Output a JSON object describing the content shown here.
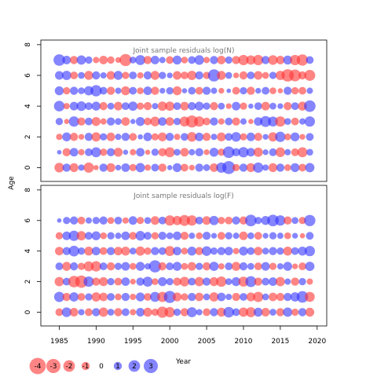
{
  "chart_data": {
    "type": "scatter",
    "ylabel": "Age",
    "xlabel": "Year",
    "x_ticks": [
      1985,
      1990,
      1995,
      2000,
      2005,
      2010,
      2015,
      2020
    ],
    "y_ticks": [
      0,
      2,
      4,
      6,
      8
    ],
    "xlim": [
      1982.5,
      2021.3
    ],
    "ylim": [
      -0.9,
      8.3
    ],
    "years": [
      1985,
      1986,
      1987,
      1988,
      1989,
      1990,
      1991,
      1992,
      1993,
      1994,
      1995,
      1996,
      1997,
      1998,
      1999,
      2000,
      2001,
      2002,
      2003,
      2004,
      2005,
      2006,
      2007,
      2008,
      2009,
      2010,
      2011,
      2012,
      2013,
      2014,
      2015,
      2016,
      2017,
      2018,
      2019
    ],
    "ages": [
      0,
      1,
      2,
      3,
      4,
      5,
      6,
      7
    ],
    "colors": {
      "positive": "#3333ff",
      "negative": "#ff3333"
    },
    "panels": [
      {
        "title": "Joint sample residuals log(N)",
        "residuals": [
          [
            -1.4,
            1.0,
            -1.2,
            0.6,
            -1.6,
            -0.4,
            1.0,
            -1.2,
            0.5,
            1.1,
            -0.8,
            1.3,
            -0.6,
            0.9,
            -1.0,
            0.4,
            1.2,
            -0.9,
            -0.5,
            1.0,
            0.7,
            -1.1,
            1.6,
            2.5,
            -0.8,
            1.0,
            -1.2,
            1.6,
            0.6,
            -1.2,
            1.0,
            -0.7,
            1.2,
            -0.9,
            1.3
          ],
          [
            0.3,
            -1.0,
            1.1,
            -0.6,
            0.9,
            1.5,
            -0.8,
            1.0,
            -1.2,
            0.4,
            -0.6,
            1.1,
            -0.4,
            0.8,
            -1.0,
            -1.5,
            0.7,
            -1.1,
            0.6,
            1.0,
            -0.5,
            1.2,
            -0.8,
            2.0,
            1.0,
            1.6,
            1.1,
            -1.3,
            0.5,
            0.9,
            -1.4,
            0.6,
            -0.9,
            -1.5,
            0.7
          ],
          [
            -0.6,
            1.2,
            -1.0,
            -0.5,
            1.0,
            -1.3,
            0.8,
            -1.1,
            0.6,
            1.0,
            -0.9,
            0.4,
            1.1,
            -0.8,
            -1.2,
            1.0,
            -0.6,
            0.9,
            -1.4,
            1.1,
            -1.0,
            0.6,
            -1.2,
            0.9,
            1.4,
            -0.8,
            1.1,
            -1.0,
            0.5,
            -1.3,
            1.6,
            -0.7,
            1.2,
            -0.5,
            0.9
          ],
          [
            0.8,
            -0.4,
            1.6,
            -1.0,
            0.9,
            -1.2,
            -0.6,
            1.0,
            0.7,
            -1.1,
            0.4,
            1.2,
            -0.9,
            -1.4,
            1.1,
            -1.1,
            0.8,
            -1.5,
            -2.2,
            -1.6,
            -0.9,
            1.0,
            -0.6,
            0.9,
            -1.0,
            0.6,
            -0.4,
            1.1,
            1.8,
            1.5,
            -1.6,
            0.7,
            -0.9,
            0.6,
            1.6
          ],
          [
            1.7,
            -0.6,
            1.1,
            1.4,
            0.9,
            1.2,
            -1.0,
            0.7,
            -1.1,
            0.9,
            1.3,
            -0.8,
            -1.0,
            0.6,
            -1.3,
            -1.3,
            0.9,
            -1.1,
            1.0,
            1.2,
            0.8,
            -1.0,
            0.7,
            -0.5,
            1.1,
            -0.8,
            0.4,
            0.9,
            -1.1,
            0.7,
            0.5,
            -1.0,
            0.9,
            -1.2,
            2.0
          ],
          [
            1.2,
            -0.8,
            1.0,
            0.7,
            1.3,
            1.9,
            0.9,
            -1.0,
            0.6,
            -1.2,
            0.9,
            -0.7,
            1.1,
            -1.0,
            0.5,
            0.8,
            -1.2,
            0.4,
            0.9,
            -0.9,
            1.0,
            0.6,
            -0.5,
            0.3,
            -0.9,
            0.8,
            -1.0,
            0.5,
            0.9,
            -0.7,
            -0.4,
            1.0,
            -0.8,
            -0.9,
            0.6
          ],
          [
            1.1,
            1.3,
            -0.9,
            0.7,
            -1.2,
            1.0,
            0.6,
            -1.1,
            1.2,
            -0.8,
            0.9,
            -0.6,
            1.0,
            -1.2,
            0.8,
            0.5,
            -1.1,
            -0.9,
            -1.3,
            1.0,
            -0.8,
            2.2,
            -1.2,
            0.7,
            -0.5,
            -1.0,
            0.9,
            -1.1,
            -0.7,
            0.8,
            -1.3,
            -2.3,
            -2.1,
            -1.0,
            -1.8
          ],
          [
            2.0,
            1.1,
            -1.0,
            1.3,
            0.8,
            -0.6,
            -1.1,
            -0.8,
            -0.5,
            -2.2,
            0.7,
            1.5,
            -1.0,
            1.1,
            0.6,
            -0.9,
            1.2,
            -0.7,
            0.9,
            1.4,
            -0.6,
            1.0,
            -1.1,
            0.8,
            -1.0,
            -1.6,
            -1.3,
            -1.6,
            1.0,
            -1.4,
            -1.1,
            1.2,
            -1.6,
            -1.9,
            0.9
          ]
        ]
      },
      {
        "title": "Joint sample residuals log(F)",
        "residuals": [
          [
            -0.9,
            1.4,
            -1.1,
            0.6,
            -0.9,
            1.0,
            -1.3,
            0.7,
            -1.0,
            0.9,
            -0.6,
            1.1,
            -1.2,
            -0.8,
            -1.9,
            -1.6,
            0.8,
            -1.0,
            1.5,
            0.6,
            -0.9,
            1.0,
            -1.2,
            1.7,
            0.9,
            -1.3,
            -1.5,
            1.2,
            -1.1,
            0.7,
            -1.0,
            1.3,
            -0.8,
            1.0,
            -1.2
          ],
          [
            1.6,
            -1.0,
            1.3,
            -0.9,
            0.8,
            -1.3,
            -1.1,
            0.9,
            -0.7,
            1.0,
            -0.6,
            1.2,
            -0.9,
            1.5,
            -1.6,
            2.2,
            -1.2,
            -0.8,
            1.0,
            -1.1,
            0.7,
            -1.3,
            1.1,
            0.6,
            -1.0,
            0.9,
            -1.2,
            -1.6,
            0.7,
            -1.1,
            -1.0,
            1.0,
            1.3,
            2.0,
            -1.5
          ],
          [
            -1.3,
            0.9,
            -2.0,
            -2.3,
            1.6,
            -1.0,
            -1.2,
            0.8,
            -0.9,
            1.1,
            -0.5,
            1.0,
            1.5,
            -0.7,
            1.2,
            0.8,
            -1.0,
            -1.4,
            0.9,
            -1.3,
            1.0,
            -1.2,
            -1.6,
            0.7,
            1.2,
            -1.5,
            1.8,
            -1.0,
            0.9,
            1.1,
            -1.3,
            0.6,
            -1.0,
            0.8,
            -0.6
          ],
          [
            0.9,
            -1.2,
            1.0,
            -0.8,
            -1.5,
            -1.6,
            0.9,
            -1.0,
            0.8,
            1.1,
            -0.7,
            1.2,
            0.6,
            2.2,
            -1.0,
            0.9,
            1.2,
            -0.7,
            -1.1,
            0.8,
            -1.0,
            1.3,
            -0.6,
            0.9,
            -1.2,
            1.0,
            0.7,
            -0.9,
            1.1,
            -0.8,
            0.6,
            1.2,
            -0.5,
            -0.9,
            1.3
          ],
          [
            -1.1,
            1.0,
            1.7,
            0.8,
            -1.2,
            1.1,
            -0.9,
            1.0,
            -1.1,
            -1.2,
            0.7,
            -1.3,
            -0.8,
            1.0,
            0.9,
            -1.5,
            1.1,
            -0.7,
            1.2,
            -1.0,
            1.4,
            0.8,
            1.0,
            1.1,
            -0.6,
            1.2,
            0.9,
            -1.1,
            0.7,
            1.0,
            0.8,
            -1.2,
            0.9,
            1.2,
            1.6
          ],
          [
            -0.8,
            1.1,
            1.6,
            -1.3,
            0.9,
            1.2,
            -0.7,
            0.8,
            0.6,
            1.1,
            -0.9,
            1.4,
            0.9,
            -0.8,
            1.0,
            0.7,
            1.1,
            -1.0,
            0.6,
            -0.7,
            1.0,
            0.5,
            -0.9,
            0.8,
            0.6,
            -1.1,
            0.7,
            -0.9,
            0.5,
            0.8,
            0.6,
            -0.7,
            0.5,
            -0.4,
            0.9
          ],
          [
            0.3,
            0.8,
            1.0,
            -0.9,
            0.6,
            0.8,
            1.0,
            -0.7,
            0.9,
            -0.6,
            1.1,
            -0.8,
            0.7,
            -1.1,
            0.9,
            -1.6,
            -1.3,
            -1.8,
            -1.6,
            0.9,
            -1.1,
            1.3,
            -0.8,
            -0.9,
            1.0,
            -1.0,
            2.0,
            0.8,
            1.2,
            2.0,
            1.6,
            -1.0,
            0.7,
            -0.8,
            1.9
          ]
        ]
      }
    ],
    "legend": [
      {
        "label": "-4",
        "value": -4
      },
      {
        "label": "-3",
        "value": -3
      },
      {
        "label": "-2",
        "value": -2
      },
      {
        "label": "-1",
        "value": -1
      },
      {
        "label": "0",
        "value": 0
      },
      {
        "label": "1",
        "value": 1
      },
      {
        "label": "2",
        "value": 2
      },
      {
        "label": "3",
        "value": 3
      }
    ]
  }
}
